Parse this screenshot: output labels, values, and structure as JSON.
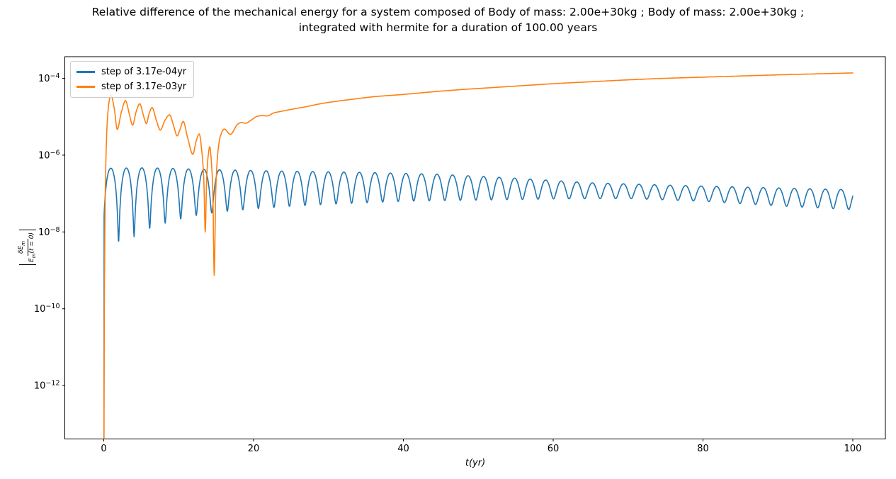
{
  "figure": {
    "title_line1": "Relative difference of the mechanical energy for a system composed of Body of mass: 2.00e+30kg ; Body of mass: 2.00e+30kg ;",
    "title_line2": "integrated with hermite for a duration of 100.00 years",
    "background": "#ffffff"
  },
  "chart_data": {
    "type": "line",
    "title": "Relative difference of the mechanical energy for a system composed of Body of mass: 2.00e+30kg ; Body of mass: 2.00e+30kg ; integrated with hermite for a duration of 100.00 years",
    "xlabel": "t(yr)",
    "ylabel_text": "|δE_m / E_m(t = 0)|",
    "ylabel": {
      "numerator_main": "δE",
      "numerator_sub": "m",
      "denominator_main": "E",
      "denominator_sub": "m",
      "denominator_rest": "(t = 0)"
    },
    "yscale": "log",
    "grid": false,
    "xlim": [
      -5.2,
      104.35
    ],
    "ylim_log10": [
      -13.39,
      -3.437
    ],
    "x_ticks": [
      0,
      20,
      40,
      60,
      80,
      100
    ],
    "y_tick_exponents": [
      -4,
      -6,
      -8,
      -10,
      -12
    ],
    "axis_color": "#000000",
    "legend": {
      "position": "upper-left",
      "entries": [
        {
          "label": "step of 3.17e-04yr",
          "color": "#1f77b4"
        },
        {
          "label": "step of 3.17e-03yr",
          "color": "#ff7f0e"
        }
      ]
    },
    "series": [
      {
        "name": "step of 3.17e-04yr",
        "color": "#1f77b4",
        "line_width": 1.6,
        "segments": [
          {
            "type": "anchors",
            "points_t_log10": [
              [
                0.03,
                -13.39
              ],
              [
                0.05,
                -7.56
              ]
            ]
          },
          {
            "type": "oscillation",
            "t_start": 0.05,
            "t_end": 100,
            "first_peak_t": 0.94,
            "period_yr": 2.074,
            "peak_envelope_t_log10": [
              [
                0.94,
                -6.34
              ],
              [
                6,
                -6.33
              ],
              [
                15,
                -6.38
              ],
              [
                25,
                -6.42
              ],
              [
                35,
                -6.45
              ],
              [
                45,
                -6.5
              ],
              [
                55,
                -6.6
              ],
              [
                65,
                -6.72
              ],
              [
                75,
                -6.78
              ],
              [
                85,
                -6.83
              ],
              [
                93,
                -6.87
              ],
              [
                100,
                -6.9
              ]
            ],
            "trough_envelope_t_log10": [
              [
                1.9,
                -8.29
              ],
              [
                3.9,
                -8.14
              ],
              [
                6,
                -7.93
              ],
              [
                8,
                -7.78
              ],
              [
                10,
                -7.68
              ],
              [
                12,
                -7.58
              ],
              [
                14,
                -7.52
              ],
              [
                17,
                -7.45
              ],
              [
                20,
                -7.4
              ],
              [
                25,
                -7.33
              ],
              [
                30,
                -7.28
              ],
              [
                40,
                -7.2
              ],
              [
                50,
                -7.17
              ],
              [
                60,
                -7.14
              ],
              [
                70,
                -7.13
              ],
              [
                80,
                -7.2
              ],
              [
                90,
                -7.32
              ],
              [
                100,
                -7.42
              ]
            ]
          }
        ]
      },
      {
        "name": "step of 3.17e-03yr",
        "color": "#ff7f0e",
        "line_width": 1.6,
        "segments": [
          {
            "type": "anchors",
            "points_t_log10": [
              [
                0.02,
                -13.39
              ],
              [
                0.08,
                -10.0
              ],
              [
                0.2,
                -7.0
              ],
              [
                0.45,
                -5.2
              ],
              [
                0.7,
                -4.62
              ],
              [
                0.95,
                -4.43
              ],
              [
                1.4,
                -4.78
              ],
              [
                1.8,
                -5.33
              ],
              [
                2.35,
                -4.88
              ],
              [
                2.9,
                -4.58
              ],
              [
                3.4,
                -4.92
              ],
              [
                3.85,
                -5.22
              ],
              [
                4.35,
                -4.85
              ],
              [
                4.8,
                -4.66
              ],
              [
                5.3,
                -4.97
              ],
              [
                5.7,
                -5.18
              ],
              [
                6.05,
                -4.92
              ],
              [
                6.45,
                -4.76
              ],
              [
                7.0,
                -5.08
              ],
              [
                7.55,
                -5.35
              ],
              [
                8.15,
                -5.1
              ],
              [
                8.8,
                -4.95
              ],
              [
                9.3,
                -5.22
              ],
              [
                9.8,
                -5.5
              ],
              [
                10.2,
                -5.32
              ],
              [
                10.6,
                -5.12
              ],
              [
                11.2,
                -5.55
              ],
              [
                11.9,
                -5.98
              ],
              [
                12.35,
                -5.62
              ],
              [
                12.75,
                -5.45
              ],
              [
                13.1,
                -5.92
              ],
              [
                13.35,
                -6.6
              ],
              [
                13.55,
                -8.0
              ],
              [
                13.75,
                -6.55
              ],
              [
                13.95,
                -6.0
              ],
              [
                14.15,
                -5.78
              ],
              [
                14.35,
                -6.12
              ],
              [
                14.55,
                -6.9
              ],
              [
                14.75,
                -9.13
              ],
              [
                14.95,
                -6.95
              ],
              [
                15.2,
                -6.0
              ],
              [
                15.55,
                -5.52
              ],
              [
                16.1,
                -5.32
              ],
              [
                16.9,
                -5.46
              ],
              [
                17.9,
                -5.19
              ],
              [
                18.4,
                -5.15
              ],
              [
                18.95,
                -5.17
              ],
              [
                19.6,
                -5.1
              ],
              [
                20.5,
                -4.99
              ],
              [
                21.2,
                -4.97
              ],
              [
                21.8,
                -4.98
              ],
              [
                22.7,
                -4.9
              ],
              [
                23.7,
                -4.86
              ],
              [
                25,
                -4.81
              ],
              [
                27,
                -4.74
              ],
              [
                29,
                -4.66
              ],
              [
                31,
                -4.6
              ],
              [
                33,
                -4.55
              ],
              [
                36,
                -4.48
              ],
              [
                40,
                -4.42
              ],
              [
                44,
                -4.35
              ],
              [
                48,
                -4.29
              ],
              [
                52,
                -4.24
              ],
              [
                56,
                -4.19
              ],
              [
                60,
                -4.14
              ],
              [
                65,
                -4.09
              ],
              [
                70,
                -4.04
              ],
              [
                75,
                -4.0
              ],
              [
                80,
                -3.97
              ],
              [
                85,
                -3.94
              ],
              [
                90,
                -3.91
              ],
              [
                95,
                -3.885
              ],
              [
                100,
                -3.86
              ]
            ]
          }
        ]
      }
    ]
  }
}
